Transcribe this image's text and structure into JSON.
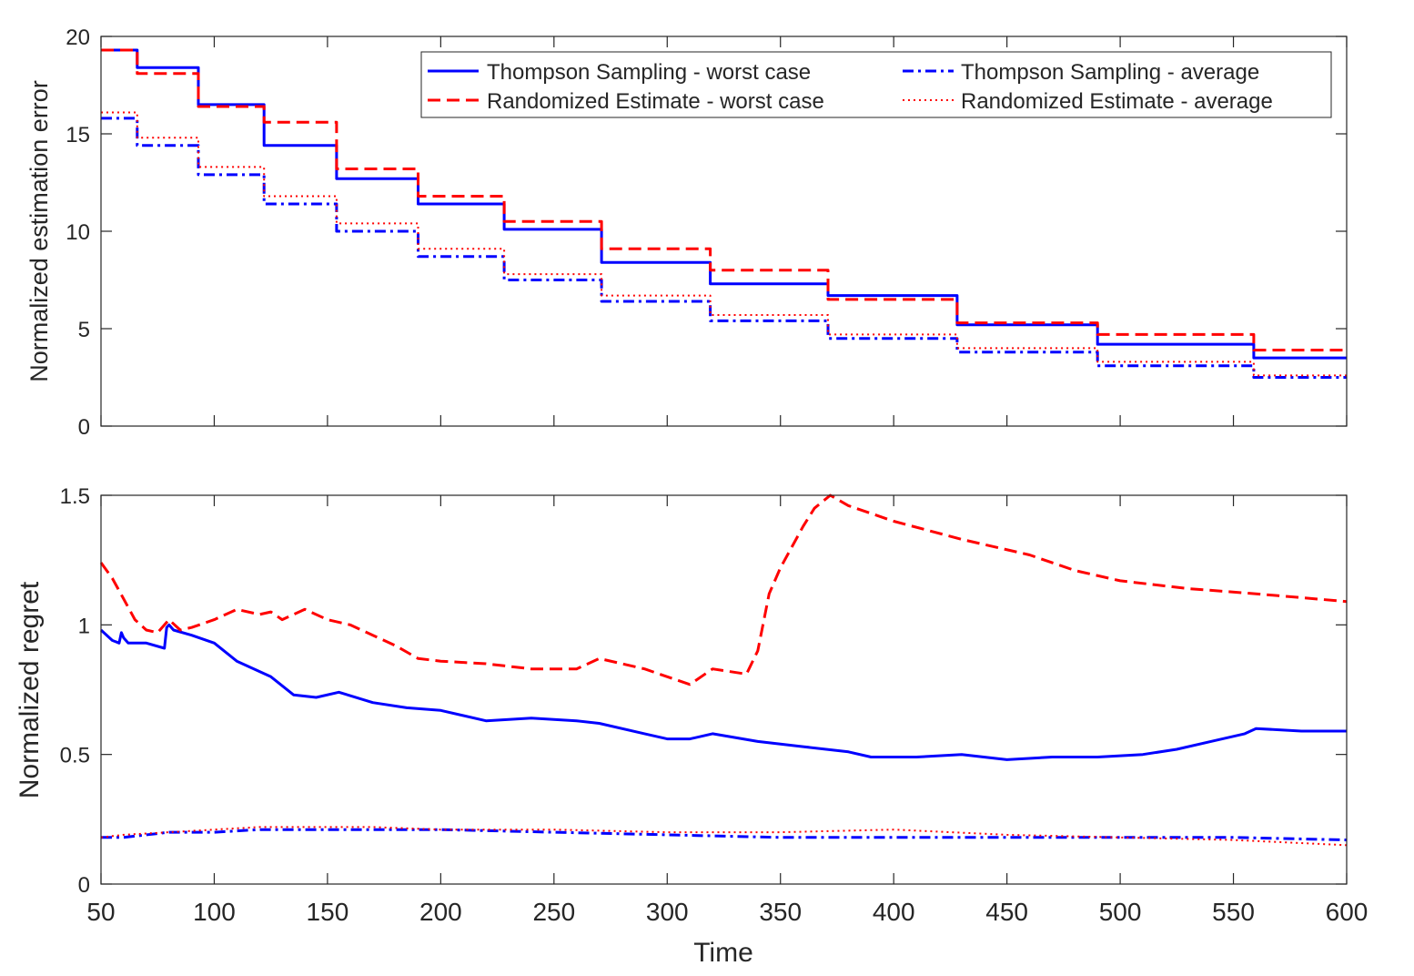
{
  "colors": {
    "blue": "#0000ff",
    "red": "#ff0000",
    "axis": "#262626"
  },
  "shared": {
    "xlabel": "Time",
    "xticks": [
      50,
      100,
      150,
      200,
      250,
      300,
      350,
      400,
      450,
      500,
      550,
      600
    ]
  },
  "legend": {
    "ts_worst": "Thompson Sampling - worst case",
    "ts_avg": "Thompson Sampling - average",
    "re_worst": "Randomized Estimate - worst case",
    "re_avg": "Randomized Estimate - average"
  },
  "chart_data": [
    {
      "type": "line",
      "step": true,
      "title": "",
      "xlabel": "",
      "ylabel": "Normalized estimation error",
      "xlim": [
        50,
        600
      ],
      "ylim": [
        0,
        20
      ],
      "yticks": [
        0,
        5,
        10,
        15,
        20
      ],
      "legend_position": "top-right",
      "series": [
        {
          "name": "Thompson Sampling - worst case",
          "color": "#0000ff",
          "style": "solid",
          "x": [
            50,
            66,
            93,
            122,
            154,
            190,
            228,
            271,
            319,
            371,
            428,
            490,
            559,
            600
          ],
          "y": [
            19.3,
            18.4,
            16.5,
            14.4,
            12.7,
            11.4,
            10.1,
            8.4,
            7.3,
            6.7,
            5.2,
            4.2,
            3.5,
            3.5
          ]
        },
        {
          "name": "Thompson Sampling - average",
          "color": "#0000ff",
          "style": "dashdot",
          "x": [
            50,
            66,
            93,
            122,
            154,
            190,
            228,
            271,
            319,
            371,
            428,
            490,
            559,
            600
          ],
          "y": [
            15.8,
            14.4,
            12.9,
            11.4,
            10.0,
            8.7,
            7.5,
            6.4,
            5.4,
            4.5,
            3.8,
            3.1,
            2.5,
            2.5
          ]
        },
        {
          "name": "Randomized Estimate - worst case",
          "color": "#ff0000",
          "style": "dashed",
          "x": [
            50,
            66,
            93,
            122,
            154,
            190,
            228,
            271,
            319,
            371,
            428,
            490,
            559,
            600
          ],
          "y": [
            19.3,
            18.1,
            16.4,
            15.6,
            13.2,
            11.8,
            10.5,
            9.1,
            8.0,
            6.5,
            5.3,
            4.7,
            3.9,
            3.9
          ]
        },
        {
          "name": "Randomized Estimate - average",
          "color": "#ff0000",
          "style": "dotted",
          "x": [
            50,
            66,
            93,
            122,
            154,
            190,
            228,
            271,
            319,
            371,
            428,
            490,
            559,
            600
          ],
          "y": [
            16.1,
            14.8,
            13.3,
            11.8,
            10.4,
            9.1,
            7.8,
            6.7,
            5.7,
            4.7,
            4.0,
            3.3,
            2.6,
            2.6
          ]
        }
      ]
    },
    {
      "type": "line",
      "title": "",
      "xlabel": "Time",
      "ylabel": "Normalized regret",
      "xlim": [
        50,
        600
      ],
      "ylim": [
        0,
        1.5
      ],
      "yticks": [
        0,
        0.5,
        1,
        1.5
      ],
      "series": [
        {
          "name": "Thompson Sampling - worst case",
          "color": "#0000ff",
          "style": "solid",
          "x": [
            50,
            55,
            58,
            59,
            60,
            62,
            70,
            78,
            79,
            80,
            82,
            90,
            100,
            110,
            125,
            135,
            145,
            155,
            170,
            185,
            200,
            220,
            240,
            260,
            270,
            290,
            300,
            310,
            320,
            340,
            360,
            380,
            390,
            410,
            430,
            450,
            470,
            490,
            510,
            525,
            540,
            555,
            560,
            580,
            600
          ],
          "y": [
            0.98,
            0.94,
            0.93,
            0.97,
            0.95,
            0.93,
            0.93,
            0.91,
            0.99,
            1.0,
            0.98,
            0.96,
            0.93,
            0.86,
            0.8,
            0.73,
            0.72,
            0.74,
            0.7,
            0.68,
            0.67,
            0.63,
            0.64,
            0.63,
            0.62,
            0.58,
            0.56,
            0.56,
            0.58,
            0.55,
            0.53,
            0.51,
            0.49,
            0.49,
            0.5,
            0.48,
            0.49,
            0.49,
            0.5,
            0.52,
            0.55,
            0.58,
            0.6,
            0.59,
            0.59
          ]
        },
        {
          "name": "Thompson Sampling - average",
          "color": "#0000ff",
          "style": "dashdot",
          "x": [
            50,
            60,
            80,
            100,
            120,
            140,
            170,
            200,
            250,
            300,
            350,
            400,
            450,
            500,
            550,
            600
          ],
          "y": [
            0.18,
            0.18,
            0.2,
            0.2,
            0.21,
            0.21,
            0.21,
            0.21,
            0.2,
            0.19,
            0.18,
            0.18,
            0.18,
            0.18,
            0.18,
            0.17
          ]
        },
        {
          "name": "Randomized Estimate - worst case",
          "color": "#ff0000",
          "style": "dashed",
          "x": [
            50,
            55,
            60,
            65,
            70,
            75,
            80,
            85,
            90,
            100,
            110,
            120,
            125,
            130,
            140,
            150,
            160,
            170,
            180,
            190,
            200,
            220,
            240,
            260,
            270,
            280,
            290,
            300,
            310,
            320,
            335,
            340,
            345,
            350,
            355,
            360,
            365,
            372,
            380,
            400,
            430,
            460,
            480,
            500,
            530,
            560,
            600
          ],
          "y": [
            1.24,
            1.18,
            1.1,
            1.02,
            0.98,
            0.97,
            1.02,
            0.98,
            0.99,
            1.02,
            1.06,
            1.04,
            1.05,
            1.02,
            1.06,
            1.02,
            1.0,
            0.96,
            0.92,
            0.87,
            0.86,
            0.85,
            0.83,
            0.83,
            0.87,
            0.85,
            0.83,
            0.8,
            0.77,
            0.83,
            0.81,
            0.9,
            1.12,
            1.22,
            1.3,
            1.38,
            1.45,
            1.5,
            1.46,
            1.4,
            1.33,
            1.27,
            1.21,
            1.17,
            1.14,
            1.12,
            1.09
          ]
        },
        {
          "name": "Randomized Estimate - average",
          "color": "#ff0000",
          "style": "dotted",
          "x": [
            50,
            60,
            80,
            100,
            120,
            140,
            170,
            200,
            250,
            300,
            350,
            400,
            450,
            500,
            550,
            600
          ],
          "y": [
            0.18,
            0.19,
            0.2,
            0.21,
            0.22,
            0.22,
            0.22,
            0.21,
            0.21,
            0.2,
            0.2,
            0.21,
            0.19,
            0.18,
            0.17,
            0.15
          ]
        }
      ]
    }
  ]
}
